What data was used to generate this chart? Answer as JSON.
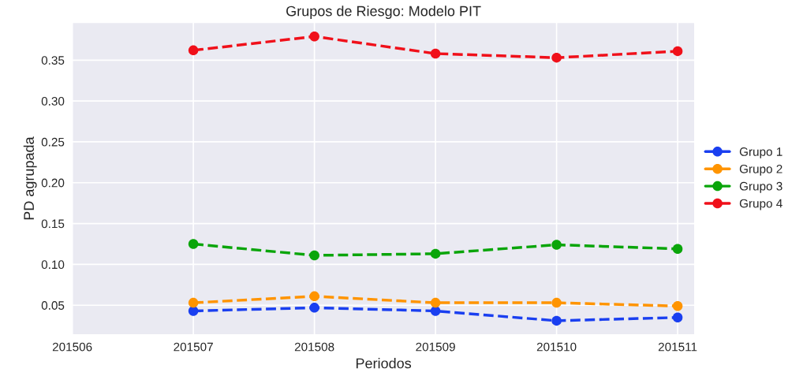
{
  "chart_data": {
    "type": "line",
    "title": "Grupos de Riesgo: Modelo PIT",
    "xlabel": "Periodos",
    "ylabel": "PD agrupada",
    "x": [
      201507,
      201508,
      201509,
      201510,
      201511
    ],
    "series": [
      {
        "name": "Grupo 1",
        "color": "#1a3ff0",
        "values": [
          0.043,
          0.047,
          0.043,
          0.031,
          0.035
        ]
      },
      {
        "name": "Grupo 2",
        "color": "#ff9400",
        "values": [
          0.053,
          0.061,
          0.053,
          0.053,
          0.049
        ]
      },
      {
        "name": "Grupo 3",
        "color": "#0aa50a",
        "values": [
          0.125,
          0.111,
          0.113,
          0.124,
          0.119
        ]
      },
      {
        "name": "Grupo 4",
        "color": "#f0101a",
        "values": [
          0.362,
          0.379,
          0.358,
          0.353,
          0.361
        ]
      }
    ],
    "xlim": [
      201506,
      201511.14
    ],
    "xticks": [
      201506,
      201507,
      201508,
      201509,
      201510,
      201511
    ],
    "ylim": [
      0.014,
      0.396
    ],
    "yticks": [
      {
        "value": 0.05,
        "label": "0.05"
      },
      {
        "value": 0.1,
        "label": "0.10"
      },
      {
        "value": 0.15,
        "label": "0.15"
      },
      {
        "value": 0.2,
        "label": "0.20"
      },
      {
        "value": 0.25,
        "label": "0.25"
      },
      {
        "value": 0.3,
        "label": "0.30"
      },
      {
        "value": 0.35,
        "label": "0.35"
      }
    ],
    "grid": true,
    "legend": "right",
    "marker": "circle",
    "line_style": "dashed"
  }
}
